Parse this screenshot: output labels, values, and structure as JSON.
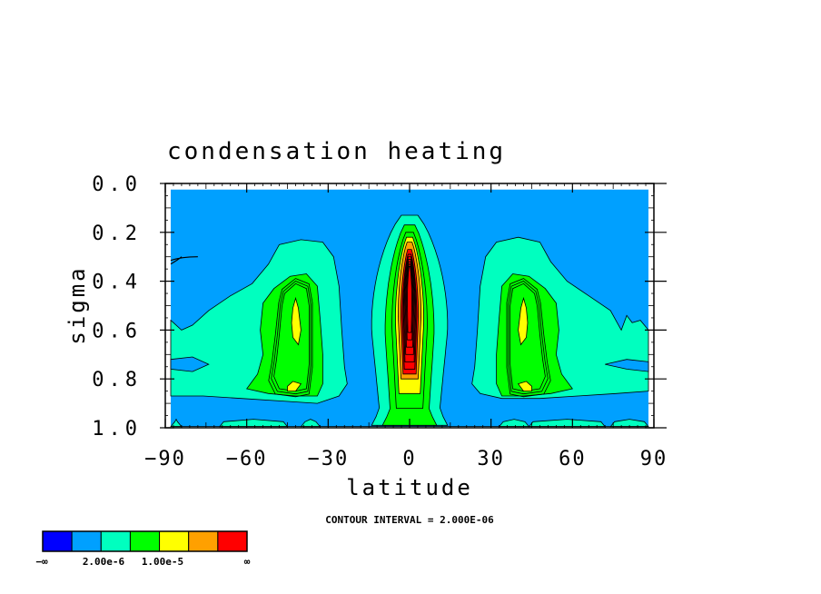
{
  "chart_data": {
    "type": "contour",
    "title": "condensation heating",
    "xlabel": "latitude",
    "ylabel": "sigma",
    "xlim": [
      -90,
      90
    ],
    "ylim": [
      1.0,
      0.0
    ],
    "x_ticks": [
      -90,
      -60,
      -30,
      0,
      30,
      60,
      90
    ],
    "x_tick_labels": [
      "−90",
      "−60",
      "−30",
      "0",
      "30",
      "60",
      "90"
    ],
    "y_ticks": [
      0.0,
      0.2,
      0.4,
      0.6,
      0.8,
      1.0
    ],
    "y_tick_labels": [
      "0.0",
      "0.2",
      "0.4",
      "0.6",
      "0.8",
      "1.0"
    ],
    "contour_interval_label": "CONTOUR INTERVAL = 2.000E-06",
    "colorbar": {
      "colors": [
        "#0000ff",
        "#00a0ff",
        "#00ffbf",
        "#00ff00",
        "#ffff00",
        "#ffa000",
        "#ff0000"
      ],
      "labels": [
        "−∞",
        "2.00e-6",
        "1.00e-5",
        "∞"
      ]
    },
    "features": [
      {
        "label": "equatorial maximum",
        "lat": 0,
        "sigma_top": 0.14,
        "sigma_bottom": 0.98
      },
      {
        "label": "southern mid-latitude maximum",
        "lat": -42,
        "sigma_top": 0.25,
        "sigma_bottom": 0.88
      },
      {
        "label": "northern mid-latitude maximum",
        "lat": 42,
        "sigma_top": 0.24,
        "sigma_bottom": 0.88
      }
    ]
  }
}
